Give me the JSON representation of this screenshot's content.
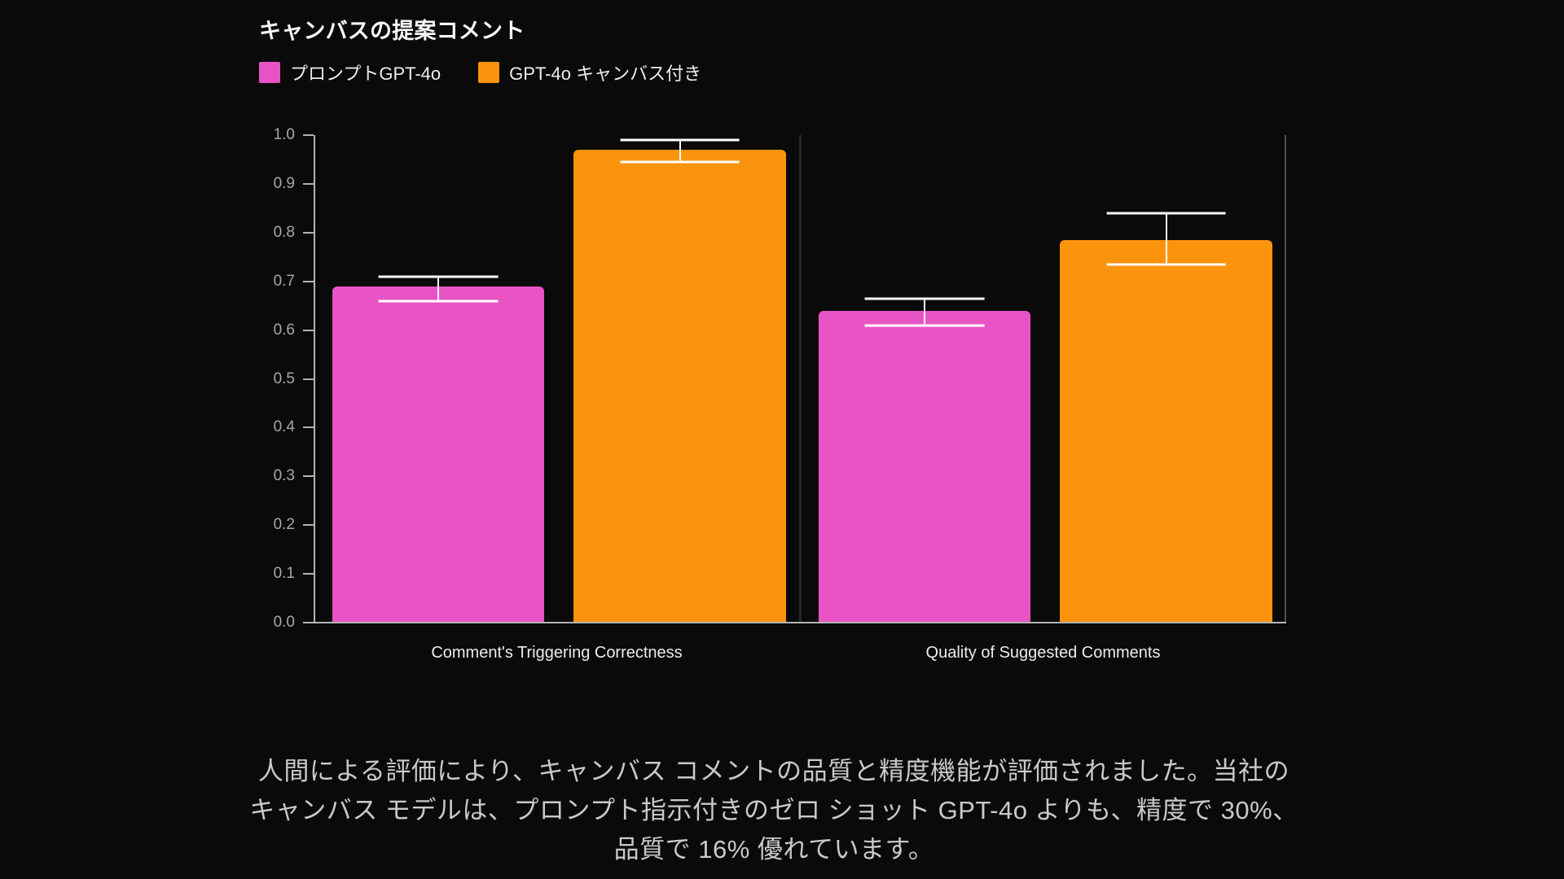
{
  "colors": {
    "background": "#0a0a0a",
    "title_color": "#f7f7f7",
    "legend_label_color": "#ededed",
    "axis_color": "#b3b3b3",
    "tick_label_color": "#a8a8a8",
    "divider_color": "#262626",
    "right_edge_color": "#4f4f4f",
    "error_color": "#ffffff",
    "xlabel_color": "#ececec",
    "caption_color": "#c9c9c9",
    "series_pink": "#e854c4",
    "series_orange": "#fb930d"
  },
  "chart_data": {
    "type": "bar",
    "title": "キャンバスの提案コメント",
    "categories": [
      "Comment's Triggering Correctness",
      "Quality of Suggested Comments"
    ],
    "series": [
      {
        "name": "プロンプトGPT-4o",
        "color": "#e854c4",
        "values": [
          0.69,
          0.64
        ],
        "error_low": [
          0.66,
          0.61
        ],
        "error_high": [
          0.71,
          0.665
        ]
      },
      {
        "name": "GPT-4o キャンバス付き",
        "color": "#fb930d",
        "values": [
          0.97,
          0.785
        ],
        "error_low": [
          0.945,
          0.735
        ],
        "error_high": [
          0.99,
          0.84
        ]
      }
    ],
    "ylim": [
      0.0,
      1.0
    ],
    "yticks": [
      "0.0",
      "0.1",
      "0.2",
      "0.3",
      "0.4",
      "0.5",
      "0.6",
      "0.7",
      "0.8",
      "0.9",
      "1.0"
    ],
    "xlabel": "",
    "ylabel": "",
    "grid": false,
    "legend_position": "top-left",
    "error_bars": true
  },
  "caption": {
    "lines": [
      "人間による評価により、キャンバス コメントの品質と精度機能が評価されました。当社の",
      "キャンバス モデルは、プロンプト指示付きのゼロ ショット GPT-4o よりも、精度で 30%、",
      "品質で 16% 優れています。"
    ]
  }
}
